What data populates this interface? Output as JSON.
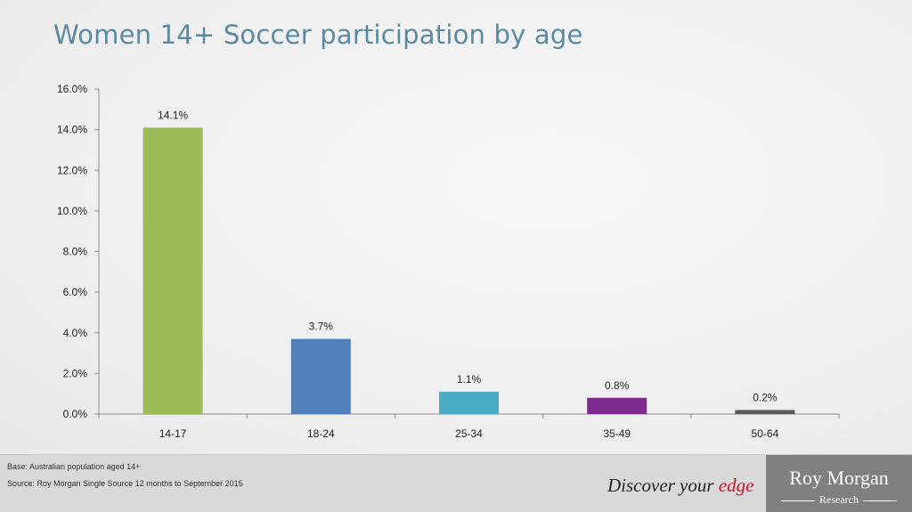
{
  "slide": {
    "title": "Women 14+ Soccer participation by age"
  },
  "chart_data": {
    "type": "bar",
    "title": "Women 14+ Soccer participation by age",
    "categories": [
      "14-17",
      "18-24",
      "25-34",
      "35-49",
      "50-64"
    ],
    "values": [
      14.1,
      3.7,
      1.1,
      0.8,
      0.2
    ],
    "value_labels": [
      "14.1%",
      "3.7%",
      "1.1%",
      "0.8%",
      "0.2%"
    ],
    "colors": [
      "#9bbb59",
      "#4f81bd",
      "#4bacc6",
      "#7f2a8f",
      "#595959"
    ],
    "yticks": [
      "0.0%",
      "2.0%",
      "4.0%",
      "6.0%",
      "8.0%",
      "10.0%",
      "12.0%",
      "14.0%",
      "16.0%"
    ],
    "ylim": [
      0,
      16
    ],
    "xlabel": "",
    "ylabel": "",
    "grid": false,
    "legend": "none"
  },
  "footer": {
    "base_note": "Base: Australian population aged 14+",
    "source_note": "Source: Roy Morgan Single Source 12 months to September 2015",
    "tagline_main": "Discover your ",
    "tagline_accent": "edge",
    "logo_name": "Roy Morgan",
    "logo_sub": "Research",
    "accent_color": "#c8102e"
  }
}
